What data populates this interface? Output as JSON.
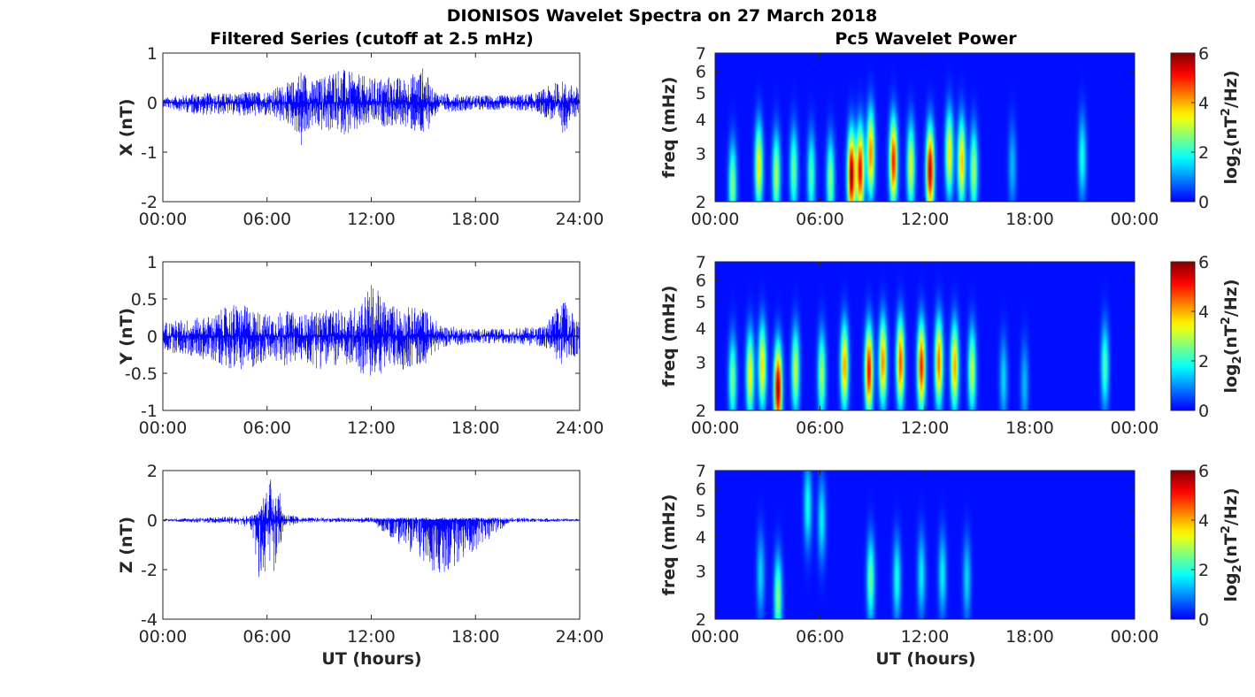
{
  "chart_data": {
    "title": "DIONISOS Wavelet Spectra on 27 March 2018",
    "xlabel": "UT (hours)",
    "left_column": {
      "title": "Filtered Series (cutoff at 2.5 mHz)",
      "type": "line",
      "x_ticks": [
        "00:00",
        "06:00",
        "12:00",
        "18:00",
        "24:00"
      ],
      "xlim_hours": [
        0,
        24
      ],
      "series_color": "#0000ff",
      "panels": [
        {
          "ylabel": "X (nT)",
          "ylim": [
            -2,
            1
          ],
          "y_ticks": [
            "1",
            "0",
            "-1",
            "-2"
          ],
          "envelope": {
            "x": [
              0,
              2,
              4,
              6,
              7.5,
              8,
              8.5,
              9,
              10,
              11,
              12,
              13,
              14,
              15,
              15.5,
              16,
              18,
              20,
              21.5,
              22.5,
              23,
              24
            ],
            "upper": [
              0.1,
              0.2,
              0.2,
              0.25,
              0.45,
              0.75,
              0.45,
              0.5,
              0.75,
              0.6,
              0.5,
              0.55,
              0.5,
              0.75,
              0.3,
              0.2,
              0.15,
              0.15,
              0.2,
              0.4,
              0.45,
              0.3
            ],
            "lower": [
              -0.1,
              -0.25,
              -0.25,
              -0.3,
              -0.5,
              -1.0,
              -0.5,
              -0.6,
              -0.6,
              -0.7,
              -0.45,
              -0.5,
              -0.5,
              -0.8,
              -0.35,
              -0.2,
              -0.15,
              -0.15,
              -0.2,
              -0.4,
              -0.65,
              -0.2
            ]
          }
        },
        {
          "ylabel": "Y (nT)",
          "ylim": [
            -1,
            1
          ],
          "y_ticks": [
            "1",
            "0.5",
            "0",
            "-0.5",
            "-1"
          ],
          "envelope": {
            "x": [
              0,
              2,
              3,
              4,
              5,
              6,
              7,
              8,
              9,
              10,
              11,
              12,
              13,
              14,
              15,
              16,
              18,
              20,
              22,
              23,
              24
            ],
            "upper": [
              0.2,
              0.25,
              0.3,
              0.45,
              0.4,
              0.3,
              0.35,
              0.3,
              0.35,
              0.35,
              0.4,
              0.72,
              0.45,
              0.4,
              0.4,
              0.15,
              0.1,
              0.1,
              0.15,
              0.5,
              0.25
            ],
            "lower": [
              -0.2,
              -0.3,
              -0.35,
              -0.45,
              -0.45,
              -0.35,
              -0.4,
              -0.35,
              -0.45,
              -0.4,
              -0.45,
              -0.6,
              -0.45,
              -0.45,
              -0.4,
              -0.15,
              -0.1,
              -0.1,
              -0.15,
              -0.4,
              -0.25
            ]
          }
        },
        {
          "ylabel": "Z (nT)",
          "ylim": [
            -4,
            2
          ],
          "y_ticks": [
            "2",
            "0",
            "-2",
            "-4"
          ],
          "envelope": {
            "x": [
              0,
              2,
              4,
              5,
              5.5,
              6,
              6.5,
              7,
              8,
              12,
              16,
              20,
              24
            ],
            "upper": [
              0.05,
              0.1,
              0.15,
              0.2,
              0.3,
              1.7,
              1.8,
              0.3,
              0.1,
              0.1,
              0.1,
              0.1,
              0.05
            ],
            "lower": [
              -0.05,
              -0.1,
              -0.15,
              -0.3,
              -2.5,
              -2.0,
              -2.2,
              -0.3,
              -0.1,
              -0.1,
              -2.3,
              -0.1,
              -0.05
            ]
          }
        }
      ]
    },
    "right_column": {
      "title": "Pc5 Wavelet Power",
      "type": "heatmap",
      "ylabel": "freq (mHz)",
      "y_scale": "log",
      "ylim_mhz": [
        2,
        7
      ],
      "y_ticks": [
        "2",
        "3",
        "4",
        "5",
        "6",
        "7"
      ],
      "x_ticks": [
        "00:00",
        "06:00",
        "12:00",
        "18:00",
        "00:00"
      ],
      "xlim_hours": [
        0,
        24
      ],
      "colormap": "jet",
      "colorbar": {
        "label": "log2(nT^2/Hz)",
        "label_base": "log",
        "label_sub": "2",
        "label_open": "(nT",
        "label_sup": "2",
        "label_close": "/Hz)",
        "range": [
          0,
          6
        ],
        "ticks": [
          "6",
          "4",
          "2",
          "0"
        ]
      },
      "panels": [
        {
          "blobs": [
            {
              "t": 1.0,
              "f": 2.3,
              "p": 2.6
            },
            {
              "t": 2.5,
              "f": 2.7,
              "p": 3.5
            },
            {
              "t": 3.5,
              "f": 2.5,
              "p": 2.8
            },
            {
              "t": 4.5,
              "f": 2.6,
              "p": 2.4
            },
            {
              "t": 5.5,
              "f": 2.5,
              "p": 2.2
            },
            {
              "t": 6.6,
              "f": 2.4,
              "p": 2.6
            },
            {
              "t": 7.8,
              "f": 2.5,
              "p": 5.8
            },
            {
              "t": 8.3,
              "f": 2.6,
              "p": 5.2
            },
            {
              "t": 8.9,
              "f": 3.0,
              "p": 4.2
            },
            {
              "t": 10.2,
              "f": 2.8,
              "p": 5.0
            },
            {
              "t": 11.2,
              "f": 2.7,
              "p": 3.2
            },
            {
              "t": 12.3,
              "f": 2.6,
              "p": 5.6
            },
            {
              "t": 13.4,
              "f": 3.0,
              "p": 3.5
            },
            {
              "t": 14.1,
              "f": 2.8,
              "p": 3.8
            },
            {
              "t": 14.8,
              "f": 2.6,
              "p": 2.8
            },
            {
              "t": 17.0,
              "f": 2.7,
              "p": 1.2
            },
            {
              "t": 21.0,
              "f": 2.9,
              "p": 1.8
            }
          ]
        },
        {
          "blobs": [
            {
              "t": 1.0,
              "f": 2.6,
              "p": 2.5
            },
            {
              "t": 2.0,
              "f": 2.7,
              "p": 3.4
            },
            {
              "t": 2.7,
              "f": 2.9,
              "p": 3.6
            },
            {
              "t": 3.6,
              "f": 2.4,
              "p": 5.8
            },
            {
              "t": 4.6,
              "f": 2.8,
              "p": 3.0
            },
            {
              "t": 6.1,
              "f": 2.7,
              "p": 2.8
            },
            {
              "t": 7.4,
              "f": 2.9,
              "p": 4.0
            },
            {
              "t": 8.8,
              "f": 2.8,
              "p": 5.2
            },
            {
              "t": 9.6,
              "f": 3.0,
              "p": 4.2
            },
            {
              "t": 10.6,
              "f": 3.0,
              "p": 4.6
            },
            {
              "t": 11.8,
              "f": 2.9,
              "p": 5.0
            },
            {
              "t": 12.8,
              "f": 3.0,
              "p": 4.4
            },
            {
              "t": 13.7,
              "f": 2.9,
              "p": 4.0
            },
            {
              "t": 14.7,
              "f": 2.8,
              "p": 3.0
            },
            {
              "t": 16.5,
              "f": 2.6,
              "p": 1.4
            },
            {
              "t": 17.7,
              "f": 2.5,
              "p": 1.2
            },
            {
              "t": 22.3,
              "f": 2.9,
              "p": 2.2
            }
          ]
        },
        {
          "blobs": [
            {
              "t": 2.6,
              "f": 2.9,
              "p": 1.4
            },
            {
              "t": 3.6,
              "f": 2.4,
              "p": 2.6
            },
            {
              "t": 5.3,
              "f": 5.2,
              "p": 1.8
            },
            {
              "t": 6.1,
              "f": 4.6,
              "p": 1.6
            },
            {
              "t": 8.9,
              "f": 2.8,
              "p": 2.4
            },
            {
              "t": 10.4,
              "f": 2.8,
              "p": 1.8
            },
            {
              "t": 11.8,
              "f": 2.9,
              "p": 1.6
            },
            {
              "t": 13.0,
              "f": 2.9,
              "p": 1.6
            },
            {
              "t": 14.4,
              "f": 2.8,
              "p": 1.4
            }
          ]
        }
      ]
    }
  }
}
